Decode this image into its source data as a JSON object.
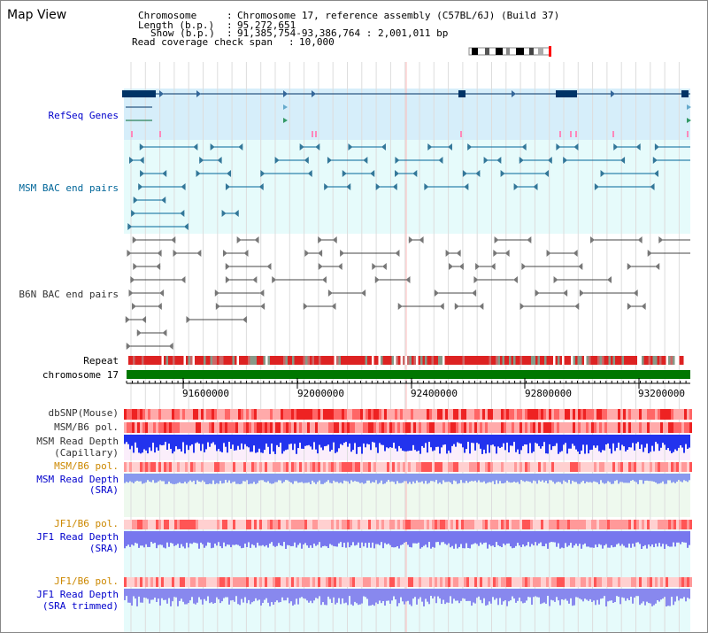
{
  "app": {
    "title": "Map View"
  },
  "info": {
    "chromosome_label": "Chromosome",
    "chromosome_value": "Chromosome 17, reference assembly (C57BL/6J) (Build 37)",
    "length_label": "Length (b.p.)",
    "length_value": "95,272,651",
    "show_label": "Show (b.p.)",
    "show_value": "91,385,754-93,386,764 : 2,001,011 bp",
    "coverage_label": "Read coverage check span",
    "coverage_value": "10,000"
  },
  "colors": {
    "label_blue": "#0000cc",
    "label_teal": "#006699",
    "label_gray": "#333333",
    "label_orange": "#cc8800",
    "refseq_bg": "#d6eefa",
    "msm_bac_bg": "#e6fbfb",
    "gene": "#003366",
    "snp_red": "#ff3333",
    "read_depth_blue": "#3344ee",
    "chrom_green": "#007700"
  },
  "tracks": {
    "refseq": "RefSeq Genes",
    "msm_bac": "MSM BAC end pairs",
    "b6n_bac": "B6N BAC end pairs",
    "repeat": "Repeat",
    "chromosome": "chromosome 17",
    "dbsnp": "dbSNP(Mouse)",
    "msm_b6_pol": "MSM/B6 pol.",
    "msm_read_depth_cap": "MSM Read Depth",
    "msm_read_depth_cap_sub": "(Capillary)",
    "msm_b6_pol_2": "MSM/B6 pol.",
    "msm_read_depth_sra": "MSM Read Depth",
    "msm_read_depth_sra_sub": "(SRA)",
    "jf1_b6_pol": "JF1/B6 pol.",
    "jf1_read_depth_sra": "JF1 Read Depth",
    "jf1_read_depth_sra_sub": "(SRA)",
    "jf1_b6_pol_2": "JF1/B6 pol.",
    "jf1_read_depth_trim": "JF1 Read Depth",
    "jf1_read_depth_trim_sub": "(SRA trimmed)"
  },
  "axis": {
    "ticks": [
      "91600000",
      "92000000",
      "92400000",
      "92800000",
      "93200000"
    ]
  }
}
